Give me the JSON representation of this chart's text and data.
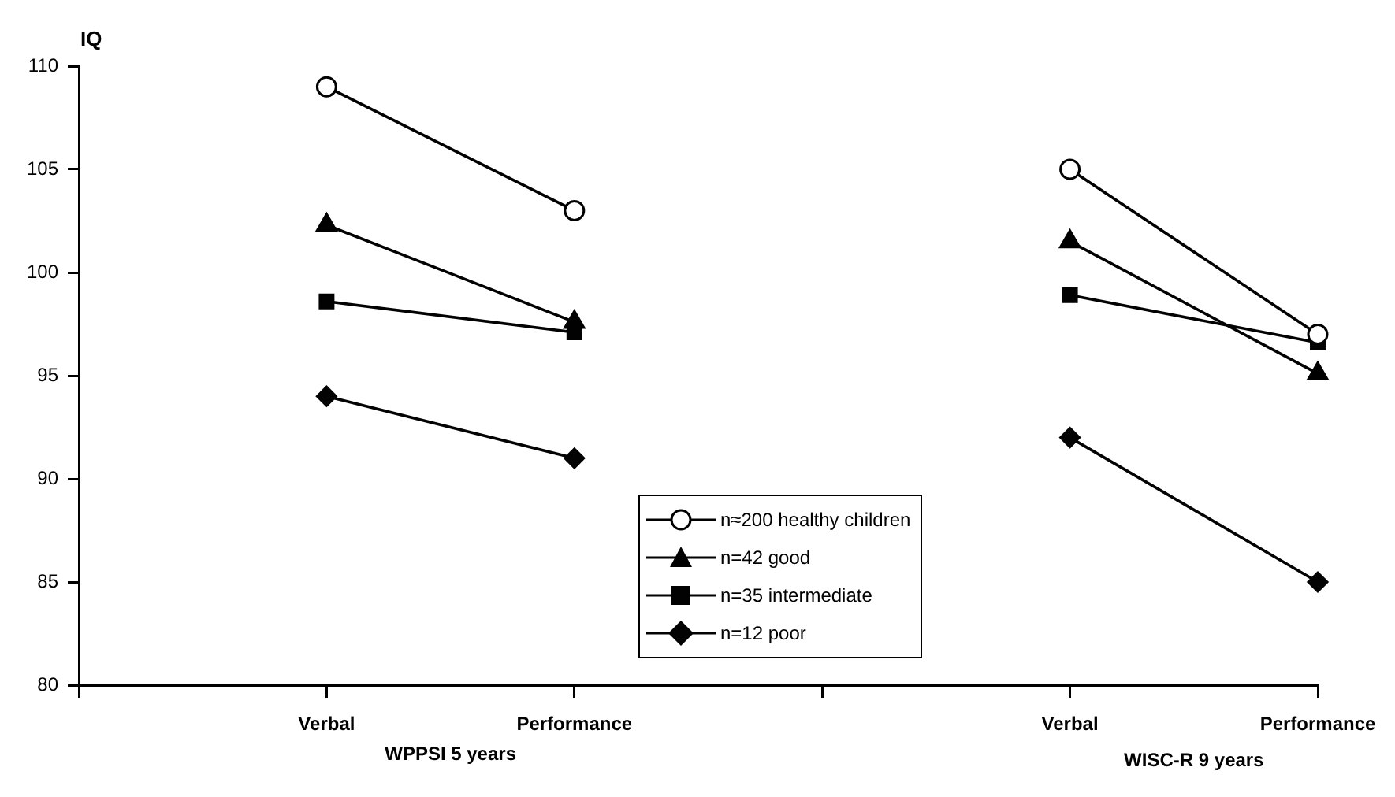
{
  "chart_data": {
    "type": "line",
    "ylabel": "IQ",
    "categories": [
      null,
      "Verbal",
      "Performance",
      null,
      "Verbal",
      "Performance"
    ],
    "series": [
      {
        "name": "n≈200 healthy children",
        "color": "#000000",
        "marker": "circle",
        "values": [
          null,
          109,
          103,
          null,
          105,
          97
        ]
      },
      {
        "name": "n=42 good",
        "color": "#010101",
        "marker": "triangle",
        "values": [
          null,
          102.3,
          97.6,
          null,
          101.5,
          95.1
        ]
      },
      {
        "name": "n=35 intermediate",
        "color": "#020202",
        "marker": "square",
        "values": [
          null,
          98.6,
          97.1,
          null,
          98.9,
          96.6
        ]
      },
      {
        "name": "n=12 poor",
        "color": "#030303",
        "marker": "diamond",
        "values": [
          null,
          94,
          91,
          null,
          92,
          85
        ]
      }
    ],
    "ylim": [
      80,
      110
    ],
    "yticks": [
      80,
      85,
      90,
      95,
      100,
      105,
      110
    ],
    "grid": false,
    "legend": "bottom",
    "line_style": "solid",
    "annotations": [
      "WPPSI 5 years",
      "WISC-R 9 years"
    ]
  }
}
